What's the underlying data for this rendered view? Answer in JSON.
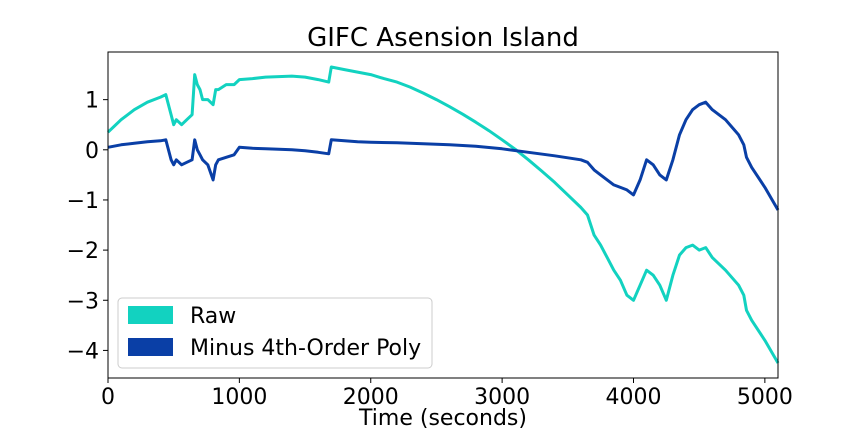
{
  "chart_data": {
    "type": "line",
    "title": "GIFC Asension Island",
    "xlabel": "Time (seconds)",
    "ylabel": "",
    "xlim": [
      0,
      5100
    ],
    "ylim": [
      -4.55,
      1.95
    ],
    "xticks": [
      0,
      1000,
      2000,
      3000,
      4000,
      5000
    ],
    "xtick_labels": [
      "0",
      "1000",
      "2000",
      "3000",
      "4000",
      "5000"
    ],
    "yticks": [
      1,
      0,
      -1,
      -2,
      -3,
      -4
    ],
    "ytick_labels": [
      "1",
      "0",
      "−1",
      "−2",
      "−3",
      "−4"
    ],
    "grid": false,
    "legend_position": "lower-left",
    "series": [
      {
        "name": "Raw",
        "color": "#12d2c0",
        "x": [
          0,
          100,
          200,
          300,
          400,
          440,
          480,
          500,
          520,
          560,
          600,
          640,
          660,
          680,
          700,
          720,
          760,
          800,
          820,
          840,
          900,
          960,
          1000,
          1100,
          1200,
          1300,
          1400,
          1500,
          1600,
          1680,
          1700,
          1800,
          1900,
          2000,
          2100,
          2200,
          2300,
          2400,
          2500,
          2600,
          2700,
          2800,
          2900,
          3000,
          3100,
          3200,
          3300,
          3400,
          3500,
          3600,
          3650,
          3700,
          3750,
          3800,
          3850,
          3900,
          3950,
          4000,
          4050,
          4100,
          4150,
          4200,
          4250,
          4300,
          4350,
          4400,
          4450,
          4500,
          4550,
          4600,
          4700,
          4800,
          4840,
          4860,
          4900,
          5000,
          5100
        ],
        "y": [
          0.35,
          0.6,
          0.8,
          0.95,
          1.05,
          1.1,
          0.7,
          0.5,
          0.6,
          0.5,
          0.6,
          0.7,
          1.5,
          1.3,
          1.2,
          1.0,
          1.0,
          0.9,
          1.2,
          1.2,
          1.3,
          1.3,
          1.4,
          1.42,
          1.45,
          1.46,
          1.47,
          1.45,
          1.4,
          1.35,
          1.65,
          1.6,
          1.55,
          1.5,
          1.42,
          1.35,
          1.25,
          1.13,
          1.0,
          0.86,
          0.71,
          0.55,
          0.38,
          0.2,
          0.01,
          -0.2,
          -0.42,
          -0.65,
          -0.9,
          -1.15,
          -1.3,
          -1.7,
          -1.9,
          -2.15,
          -2.4,
          -2.6,
          -2.9,
          -3.0,
          -2.7,
          -2.4,
          -2.5,
          -2.7,
          -3.0,
          -2.5,
          -2.1,
          -1.95,
          -1.9,
          -2.0,
          -1.95,
          -2.15,
          -2.4,
          -2.7,
          -2.9,
          -3.2,
          -3.4,
          -3.8,
          -4.25
        ]
      },
      {
        "name": "Minus 4th-Order Poly",
        "color": "#0a3fa6",
        "x": [
          0,
          100,
          200,
          300,
          400,
          440,
          480,
          500,
          520,
          560,
          600,
          640,
          660,
          680,
          700,
          720,
          760,
          800,
          820,
          840,
          900,
          960,
          1000,
          1100,
          1200,
          1300,
          1400,
          1500,
          1600,
          1680,
          1700,
          1800,
          1900,
          2000,
          2200,
          2400,
          2600,
          2800,
          3000,
          3200,
          3400,
          3600,
          3650,
          3700,
          3750,
          3800,
          3850,
          3900,
          3950,
          4000,
          4050,
          4100,
          4150,
          4200,
          4250,
          4300,
          4350,
          4400,
          4450,
          4500,
          4550,
          4600,
          4700,
          4800,
          4840,
          4860,
          4900,
          5000,
          5100
        ],
        "y": [
          0.05,
          0.1,
          0.13,
          0.16,
          0.18,
          0.2,
          -0.2,
          -0.3,
          -0.2,
          -0.3,
          -0.25,
          -0.2,
          0.2,
          0.0,
          -0.1,
          -0.2,
          -0.3,
          -0.6,
          -0.3,
          -0.2,
          -0.15,
          -0.1,
          0.05,
          0.03,
          0.02,
          0.01,
          0.0,
          -0.02,
          -0.05,
          -0.08,
          0.2,
          0.18,
          0.16,
          0.15,
          0.14,
          0.12,
          0.1,
          0.07,
          0.02,
          -0.05,
          -0.12,
          -0.2,
          -0.25,
          -0.4,
          -0.5,
          -0.6,
          -0.7,
          -0.75,
          -0.8,
          -0.9,
          -0.6,
          -0.2,
          -0.3,
          -0.5,
          -0.6,
          -0.2,
          0.3,
          0.6,
          0.8,
          0.9,
          0.95,
          0.8,
          0.6,
          0.3,
          0.1,
          -0.15,
          -0.35,
          -0.75,
          -1.2
        ]
      }
    ]
  }
}
